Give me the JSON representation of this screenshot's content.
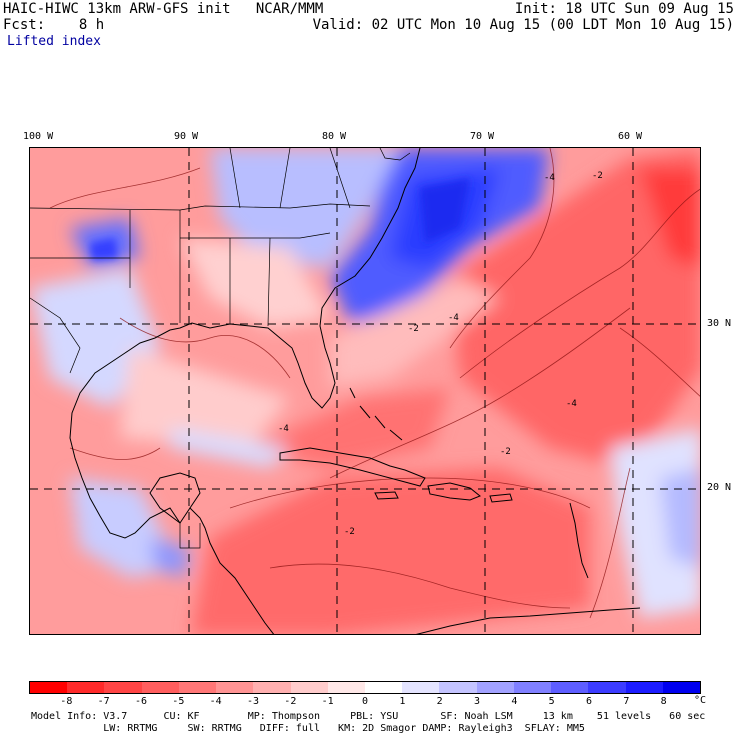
{
  "header": {
    "left_line1": "HAIC-HIWC 13km ARW-GFS init   NCAR/MMM",
    "left_line2": "Fcst:    8 h",
    "field_name": "Lifted index",
    "right_line1": "Init: 18 UTC Sun 09 Aug 15",
    "right_line2": "Valid: 02 UTC Mon 10 Aug 15 (00 LDT Mon 10 Aug 15)"
  },
  "map": {
    "lon_labels": [
      "100 W",
      "90 W",
      "80 W",
      "70 W",
      "60 W"
    ],
    "lat_labels": [
      "30 N",
      "20 N"
    ],
    "contour_labels": [
      "-4",
      "-2",
      "-2",
      "-4",
      "-2",
      "-4",
      "-4",
      "-2"
    ]
  },
  "colorbar": {
    "ticks": [
      "-8",
      "-7",
      "-6",
      "-5",
      "-4",
      "-3",
      "-2",
      "-1",
      "0",
      "1",
      "2",
      "3",
      "4",
      "5",
      "6",
      "7",
      "8"
    ],
    "unit": "°C",
    "colors": [
      "#ff0000",
      "#ff2a2a",
      "#ff4545",
      "#ff5e5e",
      "#ff7777",
      "#ff9494",
      "#ffb0b0",
      "#ffcccc",
      "#ffe8e8",
      "#ffffff",
      "#e4e4ff",
      "#c4c4ff",
      "#a2a2ff",
      "#8080ff",
      "#5e5eff",
      "#3c3cff",
      "#1c1cff",
      "#0000f0"
    ]
  },
  "footer": {
    "line1": "Model Info: V3.7      CU: KF        MP: Thompson     PBL: YSU       SF: Noah LSM     13 km    51 levels   60 sec",
    "line2": "            LW: RRTMG     SW: RRTMG   DIFF: full   KM: 2D Smagor DAMP: Rayleigh3  SFLAY: MM5"
  }
}
